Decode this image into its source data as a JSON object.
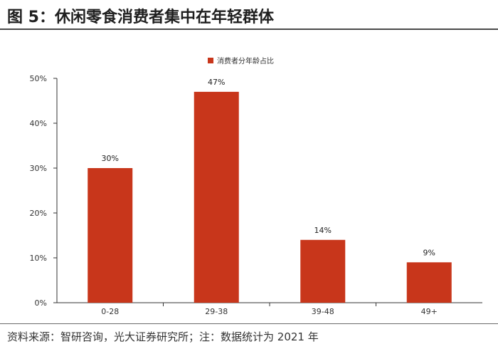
{
  "header": {
    "title": "图 5：休闲零食消费者集中在年轻群体"
  },
  "footer": {
    "source": "资料来源：智研咨询，光大证券研究所；注：数据统计为 2021 年"
  },
  "chart_data": {
    "type": "bar",
    "categories": [
      "0-28",
      "29-38",
      "39-48",
      "49+"
    ],
    "series": [
      {
        "name": "消费者分年龄占比",
        "values": [
          30,
          47,
          14,
          9
        ]
      }
    ],
    "data_labels": [
      "30%",
      "47%",
      "14%",
      "9%"
    ],
    "y_ticks": [
      "0%",
      "10%",
      "20%",
      "30%",
      "40%",
      "50%"
    ],
    "ylim": [
      0,
      50
    ],
    "legend_position": "top-center",
    "grid": false,
    "bar_color": "#c8361b"
  }
}
